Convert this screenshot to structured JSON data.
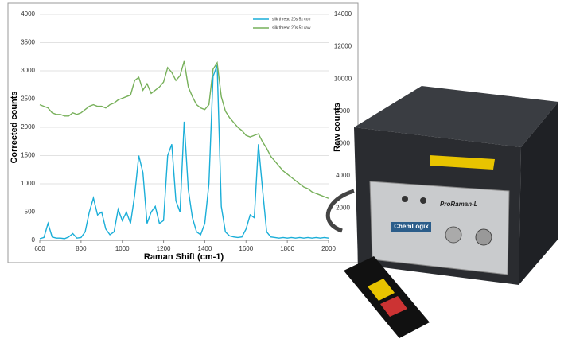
{
  "chart_data": {
    "type": "line",
    "xlabel": "Raman Shift (cm-1)",
    "ylabel": "Corrected counts",
    "y2label": "Raw counts",
    "x": [
      600,
      620,
      640,
      660,
      680,
      700,
      720,
      740,
      760,
      780,
      800,
      820,
      840,
      860,
      880,
      900,
      920,
      940,
      960,
      980,
      1000,
      1020,
      1040,
      1060,
      1080,
      1100,
      1120,
      1140,
      1160,
      1180,
      1200,
      1220,
      1240,
      1260,
      1280,
      1300,
      1320,
      1340,
      1360,
      1380,
      1400,
      1420,
      1440,
      1460,
      1480,
      1500,
      1520,
      1540,
      1560,
      1580,
      1600,
      1620,
      1640,
      1660,
      1680,
      1700,
      1720,
      1740,
      1760,
      1780,
      1800,
      1820,
      1840,
      1860,
      1880,
      1900,
      1920,
      1940,
      1960,
      1980,
      2000
    ],
    "series": [
      {
        "name": "silk thread 20s 5x corr",
        "color": "#1aaed8",
        "values": [
          30,
          50,
          300,
          60,
          40,
          40,
          30,
          60,
          120,
          40,
          50,
          150,
          500,
          750,
          450,
          500,
          200,
          100,
          150,
          550,
          350,
          500,
          300,
          800,
          1500,
          1200,
          300,
          500,
          600,
          300,
          350,
          1500,
          1700,
          700,
          500,
          2100,
          900,
          400,
          150,
          100,
          300,
          1000,
          2900,
          3100,
          600,
          150,
          80,
          60,
          50,
          60,
          200,
          450,
          400,
          1700,
          900,
          150,
          60,
          50,
          40,
          50,
          40,
          50,
          40,
          50,
          40,
          50,
          40,
          50,
          40,
          50,
          40
        ]
      },
      {
        "name": "silk thread 20s 5x raw",
        "color": "#77b05a",
        "axis": "y2",
        "values": [
          8400,
          8300,
          8200,
          7900,
          7800,
          7800,
          7700,
          7700,
          7900,
          7800,
          7900,
          8100,
          8300,
          8400,
          8300,
          8300,
          8200,
          8400,
          8500,
          8700,
          8800,
          8900,
          9000,
          9900,
          10100,
          9300,
          9700,
          9100,
          9300,
          9500,
          9800,
          10700,
          10400,
          9900,
          10200,
          11100,
          9500,
          8900,
          8400,
          8200,
          8100,
          8400,
          10600,
          11000,
          8900,
          8000,
          7600,
          7300,
          7000,
          6800,
          6500,
          6400,
          6500,
          6600,
          6100,
          5700,
          5200,
          4900,
          4600,
          4300,
          4100,
          3900,
          3700,
          3500,
          3300,
          3200,
          3000,
          2900,
          2800,
          2700,
          2600
        ]
      }
    ],
    "xlim": [
      600,
      2000
    ],
    "xticks": [
      600,
      800,
      1000,
      1200,
      1400,
      1600,
      1800,
      2000
    ],
    "ylim": [
      0,
      4000
    ],
    "yticks": [
      0,
      500,
      1000,
      1500,
      2000,
      2500,
      3000,
      3500,
      4000
    ],
    "y2lim": [
      0,
      14000
    ],
    "y2ticks": [
      2000,
      4000,
      6000,
      8000,
      10000,
      12000,
      14000
    ],
    "grid": true,
    "legend": "upper right"
  },
  "device": {
    "model": "ProRaman-L",
    "brand": "ChemLogix"
  }
}
